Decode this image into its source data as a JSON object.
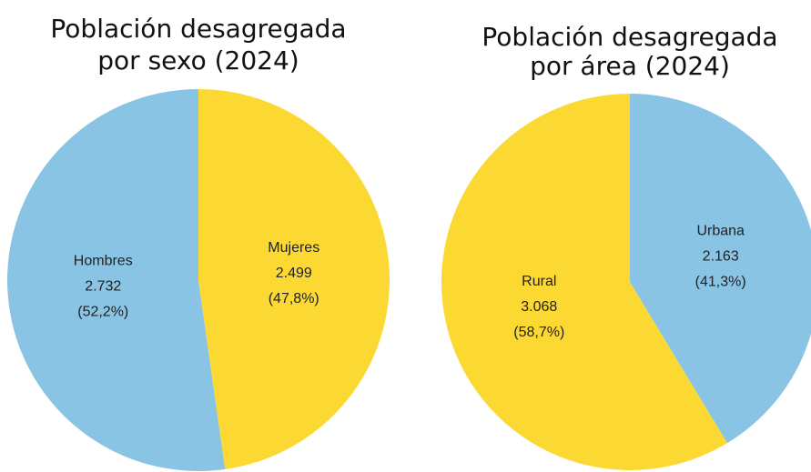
{
  "chart_data": [
    {
      "type": "pie",
      "title": [
        "Población desagregada",
        "por sexo (2024)"
      ],
      "categories": [
        "Hombres",
        "Mujeres"
      ],
      "values": [
        2732,
        2499
      ],
      "value_labels": [
        "2.732",
        "2.499"
      ],
      "percent": [
        52.2,
        47.8
      ],
      "percent_labels": [
        "(52,2%)",
        "(47,8%)"
      ],
      "colors": [
        "#89c4e4",
        "#fcd932"
      ]
    },
    {
      "type": "pie",
      "title": [
        "Población desagregada",
        "por área (2024)"
      ],
      "categories": [
        "Rural",
        "Urbana"
      ],
      "values": [
        3068,
        2163
      ],
      "value_labels": [
        "3.068",
        "2.163"
      ],
      "percent": [
        58.7,
        41.3
      ],
      "percent_labels": [
        "(58,7%)",
        "(41,3%)"
      ],
      "colors": [
        "#fcd932",
        "#89c4e4"
      ]
    }
  ]
}
